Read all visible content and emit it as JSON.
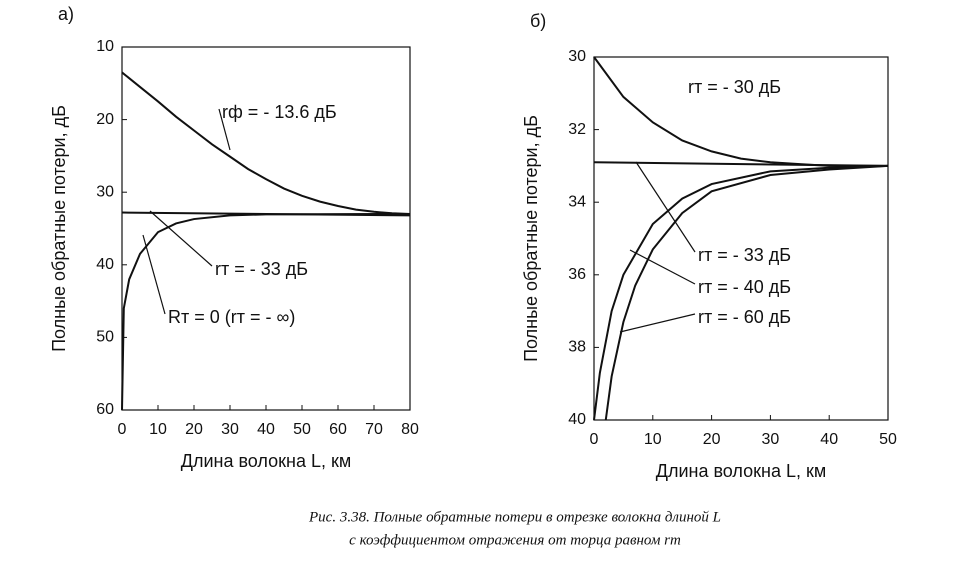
{
  "chart_data": [
    {
      "type": "line",
      "panel": "а)",
      "xlabel": "Длина волокна L, км",
      "ylabel": "Полные обратные потери, дБ",
      "xlim": [
        0,
        80
      ],
      "ylim": [
        60,
        10
      ],
      "xticks": [
        0,
        10,
        20,
        30,
        40,
        50,
        60,
        70,
        80
      ],
      "yticks": [
        10,
        20,
        30,
        40,
        50,
        60
      ],
      "y_inverted": true,
      "grid": false,
      "series": [
        {
          "name": "rф = - 13.6 дБ",
          "color": "#111111",
          "x": [
            0,
            5,
            10,
            15,
            20,
            25,
            30,
            35,
            40,
            45,
            50,
            55,
            60,
            65,
            70,
            75,
            80
          ],
          "values": [
            13.5,
            15.5,
            17.5,
            19.6,
            21.5,
            23.4,
            25.1,
            26.8,
            28.2,
            29.5,
            30.5,
            31.3,
            31.9,
            32.4,
            32.7,
            32.9,
            33.0
          ]
        },
        {
          "name": "rт = - 33 дБ",
          "color": "#111111",
          "x": [
            0,
            80
          ],
          "values": [
            32.8,
            33.2
          ]
        },
        {
          "name": "Rт = 0 (rт = - ∞)",
          "color": "#111111",
          "x": [
            0,
            0.5,
            2,
            5,
            10,
            15,
            20,
            30,
            40,
            80
          ],
          "values": [
            60,
            46,
            42,
            38.5,
            35.5,
            34.3,
            33.7,
            33.2,
            33.05,
            33
          ]
        }
      ]
    },
    {
      "type": "line",
      "panel": "б)",
      "xlabel": "Длина волокна L, км",
      "ylabel": "Полные обратные потери, дБ",
      "xlim": [
        0,
        50
      ],
      "ylim": [
        40,
        30
      ],
      "xticks": [
        0,
        10,
        20,
        30,
        40,
        50
      ],
      "yticks": [
        30,
        32,
        34,
        36,
        38,
        40
      ],
      "y_inverted": true,
      "grid": false,
      "series": [
        {
          "name": "rт = - 30 дБ",
          "color": "#111111",
          "x": [
            0,
            5,
            10,
            15,
            20,
            25,
            30,
            35,
            40,
            45,
            50
          ],
          "values": [
            30,
            31.1,
            31.8,
            32.3,
            32.6,
            32.8,
            32.9,
            32.95,
            33,
            33,
            33
          ]
        },
        {
          "name": "rт = - 33 дБ",
          "color": "#111111",
          "x": [
            0,
            50
          ],
          "values": [
            32.9,
            33
          ]
        },
        {
          "name": "rт = - 40 дБ",
          "color": "#111111",
          "x": [
            0,
            1,
            3,
            5,
            10,
            15,
            20,
            30,
            40,
            50
          ],
          "values": [
            40,
            38.7,
            37,
            36,
            34.6,
            33.9,
            33.5,
            33.15,
            33.05,
            33
          ]
        },
        {
          "name": "rт = - 60 дБ",
          "color": "#111111",
          "x": [
            2,
            3,
            5,
            7,
            10,
            15,
            20,
            30,
            40,
            50
          ],
          "values": [
            40,
            38.8,
            37.3,
            36.3,
            35.3,
            34.3,
            33.7,
            33.25,
            33.1,
            33
          ]
        }
      ]
    }
  ],
  "caption": [
    "Рис. 3.38. Полные обратные потери в отрезке волокна длиной L",
    "с коэффициентом отражения от торца равном rт"
  ]
}
